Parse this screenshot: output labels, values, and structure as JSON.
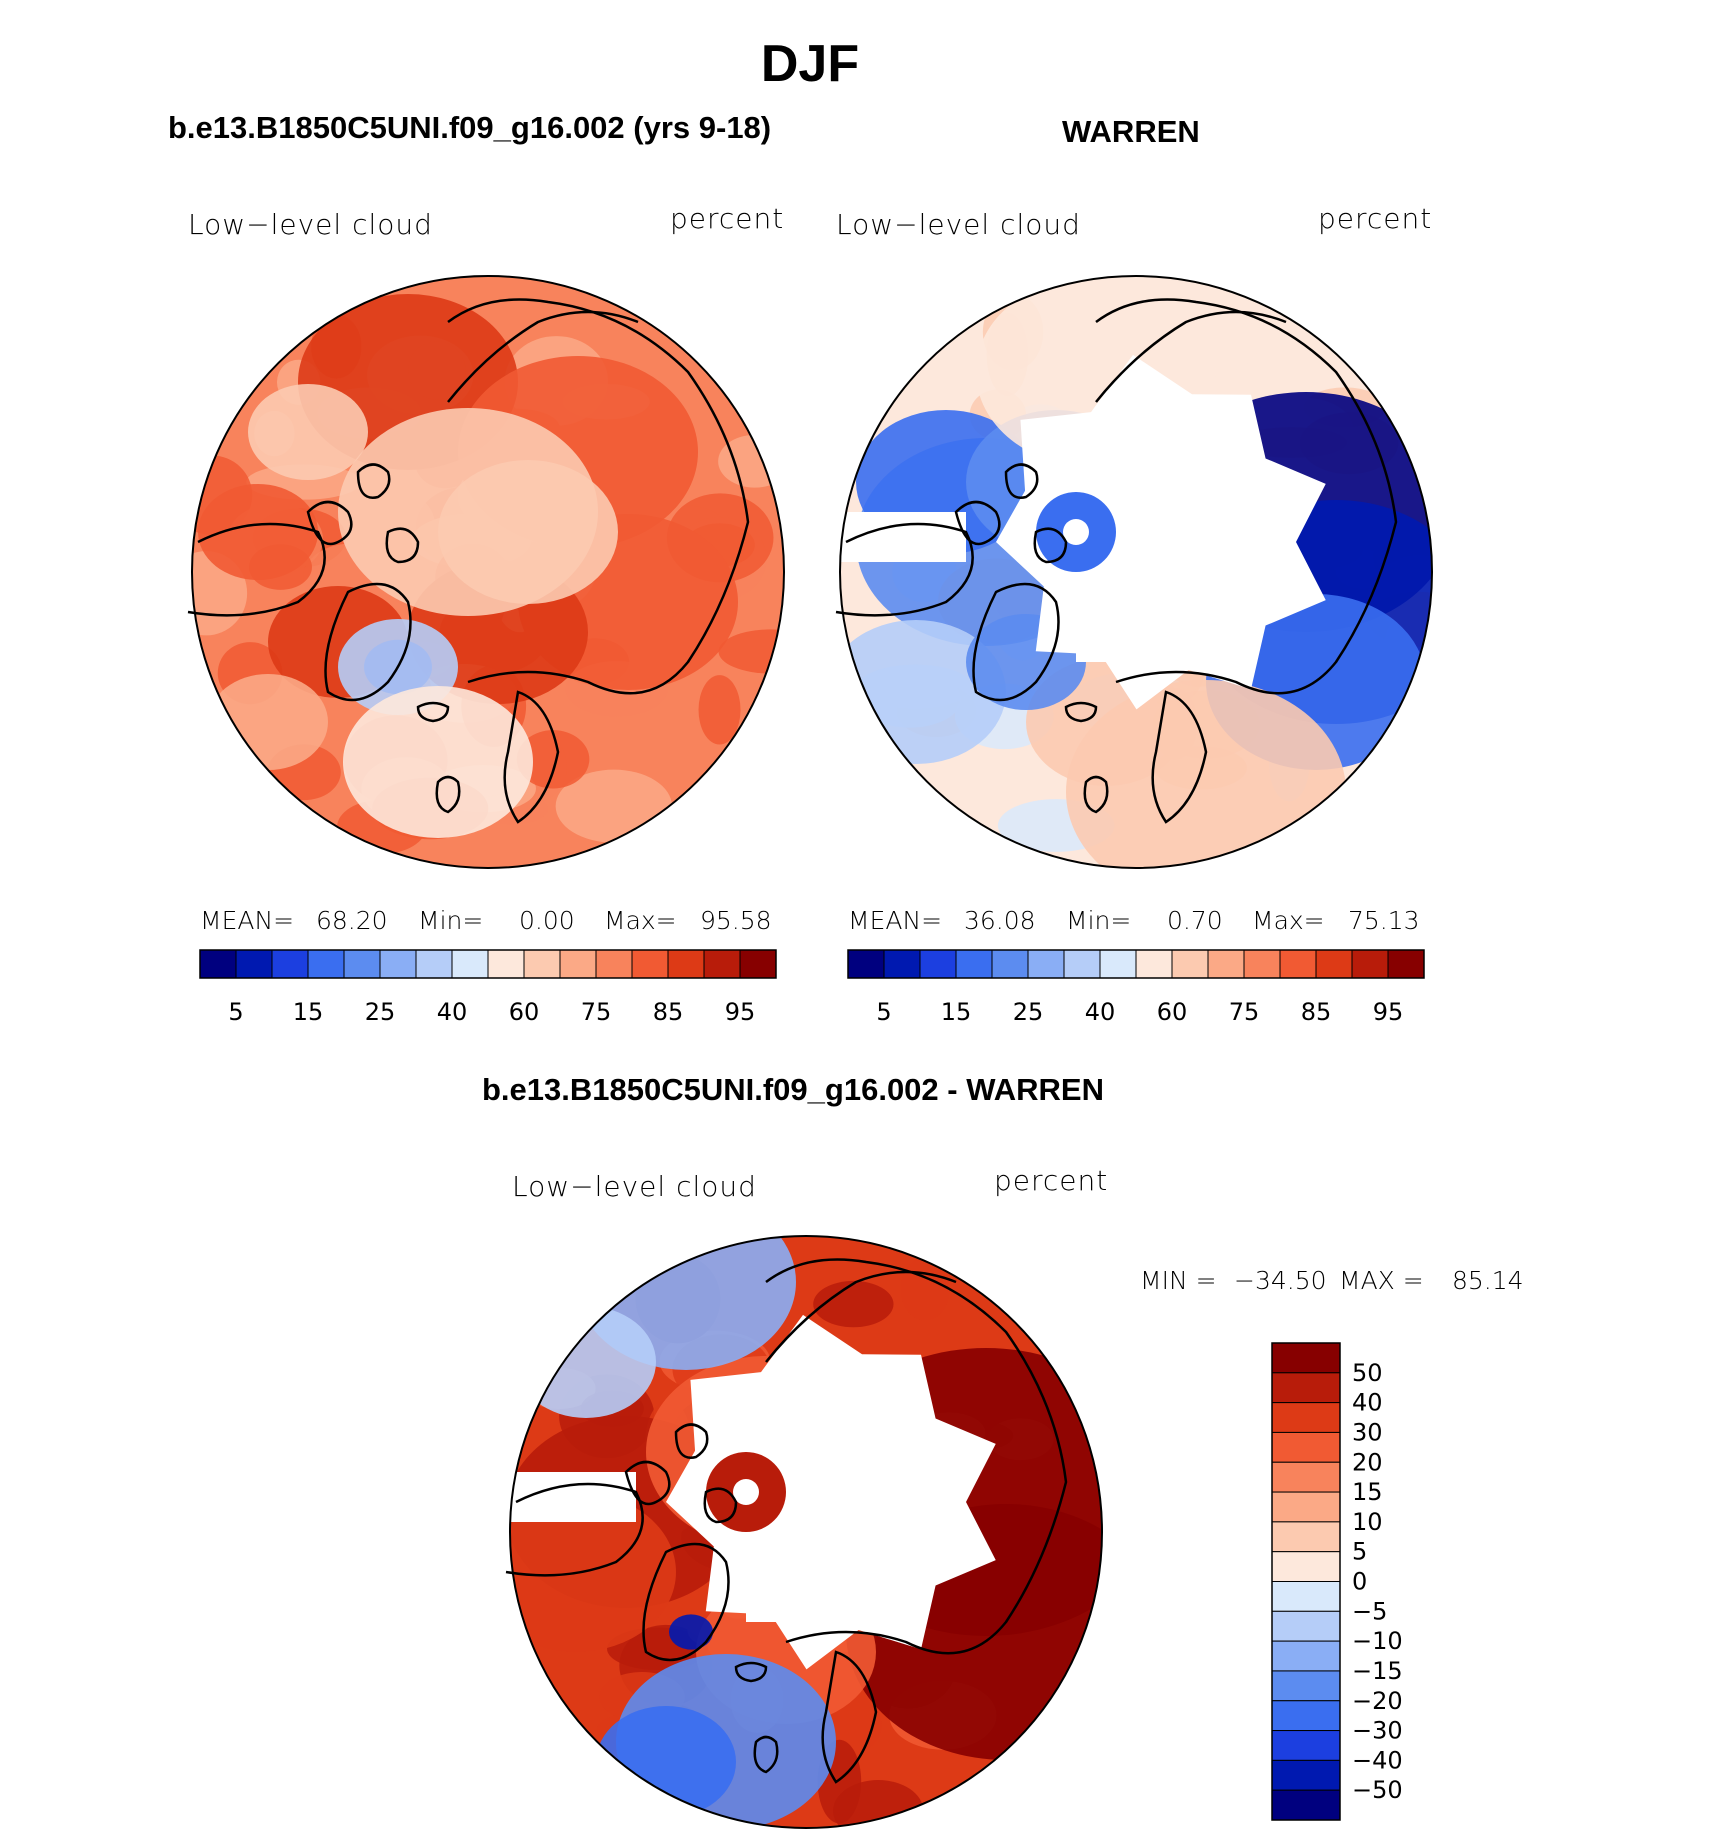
{
  "figure": {
    "title": "DJF"
  },
  "chart_data": [
    {
      "type": "heatmap",
      "title": "b.e13.B1850C5UNI.f09_g16.002 (yrs 9-18)",
      "variable_label": "Low−level cloud",
      "units_label": "percent",
      "projection": "polar stereographic (north pole)",
      "stats": {
        "mean_label": "MEAN=",
        "mean": "68.20",
        "min_label": "Min=",
        "min": "0.00",
        "max_label": "Max=",
        "max": "95.58"
      },
      "colorbar_orientation": "horizontal",
      "colorbar_tick_labels": [
        "5",
        "15",
        "25",
        "40",
        "60",
        "75",
        "85",
        "95"
      ],
      "dominant_range": [
        60,
        95
      ]
    },
    {
      "type": "heatmap",
      "title": "WARREN",
      "variable_label": "Low−level cloud",
      "units_label": "percent",
      "projection": "polar stereographic (north pole)",
      "stats": {
        "mean_label": "MEAN=",
        "mean": "36.08",
        "min_label": "Min=",
        "min": "0.70",
        "max_label": "Max=",
        "max": "75.13"
      },
      "colorbar_orientation": "horizontal",
      "colorbar_tick_labels": [
        "5",
        "15",
        "25",
        "40",
        "60",
        "75",
        "85",
        "95"
      ],
      "dominant_range": [
        5,
        60
      ]
    },
    {
      "type": "heatmap",
      "title": "b.e13.B1850C5UNI.f09_g16.002 - WARREN",
      "variable_label": "Low−level cloud",
      "units_label": "percent",
      "projection": "polar stereographic (north pole)",
      "stats": {
        "min_label": "MIN =",
        "min": "−34.50",
        "max_label": "MAX =",
        "max": "85.14"
      },
      "colorbar_orientation": "vertical",
      "colorbar_tick_labels": [
        "50",
        "40",
        "30",
        "20",
        "15",
        "10",
        "5",
        "0",
        "−5",
        "−10",
        "−15",
        "−20",
        "−30",
        "−40",
        "−50"
      ],
      "dominant_range": [
        0,
        50
      ]
    }
  ],
  "colors": {
    "seq_colormap": [
      "#00007f",
      "#0019b0",
      "#1c3fe0",
      "#3a6ef0",
      "#5c8cf0",
      "#8aaef5",
      "#b5cdf8",
      "#d9e9fb",
      "#fde8dc",
      "#fccab0",
      "#fba986",
      "#f8835c",
      "#f15a33",
      "#dd3a16",
      "#b81c0a",
      "#870000"
    ],
    "diff_colormap": [
      "#870000",
      "#b81c0a",
      "#dd3a16",
      "#f15a33",
      "#f8835c",
      "#fba986",
      "#fccab0",
      "#fde8dc",
      "#d9e9fb",
      "#b5cdf8",
      "#8aaef5",
      "#5c8cf0",
      "#3a6ef0",
      "#1c3fe0",
      "#0019b0",
      "#00007f"
    ],
    "missing": "#ffffff",
    "coastline": "#000000"
  }
}
